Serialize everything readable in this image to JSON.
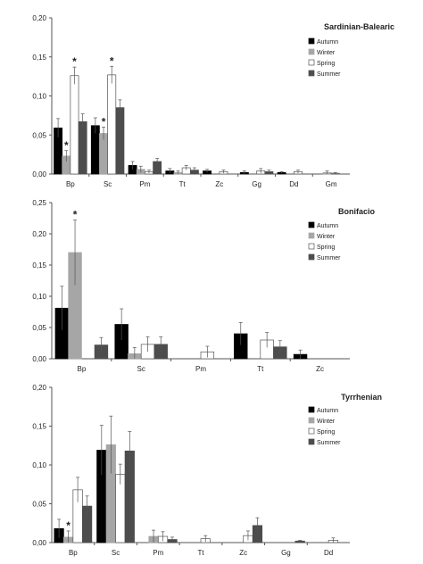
{
  "season_colors": {
    "Autumn": "#000000",
    "Winter": "#a6a6a6",
    "Spring": "#ffffff",
    "Summer": "#4d4d4d"
  },
  "chart_data": [
    {
      "type": "bar",
      "title": "Sardinian-Balearic",
      "categories": [
        "Bp",
        "Sc",
        "Pm",
        "Tt",
        "Zc",
        "Gg",
        "Dd",
        "Gm"
      ],
      "ylim": [
        0,
        0.2
      ],
      "yticks": [
        0,
        0.05,
        0.1,
        0.15,
        0.2
      ],
      "ytick_labels": [
        "0,00",
        "0,05",
        "0,10",
        "0,15",
        "0,20"
      ],
      "legend_position": "top-right",
      "grid": false,
      "series": [
        {
          "name": "Autumn",
          "values": [
            0.059,
            0.062,
            0.011,
            0.004,
            0.004,
            0.002,
            0.002,
            0.0
          ],
          "errors": [
            0.012,
            0.01,
            0.005,
            0.003,
            0.002,
            0.002,
            0.001,
            0.0
          ]
        },
        {
          "name": "Winter",
          "values": [
            0.023,
            0.052,
            0.006,
            0.002,
            0.0,
            0.0,
            0.0,
            0.002
          ],
          "errors": [
            0.007,
            0.008,
            0.004,
            0.002,
            0.0,
            0.0,
            0.0,
            0.002
          ]
        },
        {
          "name": "Spring",
          "values": [
            0.126,
            0.127,
            0.003,
            0.008,
            0.003,
            0.004,
            0.003,
            0.001
          ],
          "errors": [
            0.011,
            0.011,
            0.002,
            0.003,
            0.002,
            0.003,
            0.002,
            0.001
          ]
        },
        {
          "name": "Summer",
          "values": [
            0.067,
            0.085,
            0.016,
            0.005,
            0.0,
            0.003,
            0.0,
            0.0
          ],
          "errors": [
            0.01,
            0.01,
            0.004,
            0.003,
            0.0,
            0.002,
            0.0,
            0.0
          ]
        }
      ],
      "annotations": [
        {
          "text": "*",
          "category": "Bp",
          "series": "Winter"
        },
        {
          "text": "*",
          "category": "Bp",
          "series": "Spring"
        },
        {
          "text": "*",
          "category": "Sc",
          "series": "Winter"
        },
        {
          "text": "*",
          "category": "Sc",
          "series": "Spring"
        }
      ]
    },
    {
      "type": "bar",
      "title": "Bonifacio",
      "categories": [
        "Bp",
        "Sc",
        "Pm",
        "Tt",
        "Zc"
      ],
      "ylim": [
        0,
        0.25
      ],
      "yticks": [
        0,
        0.05,
        0.1,
        0.15,
        0.2,
        0.25
      ],
      "ytick_labels": [
        "0,00",
        "0,05",
        "0,10",
        "0,15",
        "0,20",
        "0,25"
      ],
      "legend_position": "top-right",
      "grid": false,
      "series": [
        {
          "name": "Autumn",
          "values": [
            0.081,
            0.055,
            0.0,
            0.04,
            0.007
          ],
          "errors": [
            0.035,
            0.025,
            0.0,
            0.018,
            0.007
          ]
        },
        {
          "name": "Winter",
          "values": [
            0.17,
            0.008,
            0.0,
            0.0,
            0.0
          ],
          "errors": [
            0.052,
            0.01,
            0.0,
            0.0,
            0.0
          ]
        },
        {
          "name": "Spring",
          "values": [
            0.0,
            0.023,
            0.011,
            0.03,
            0.0
          ],
          "errors": [
            0.0,
            0.012,
            0.009,
            0.012,
            0.0
          ]
        },
        {
          "name": "Summer",
          "values": [
            0.022,
            0.023,
            0.0,
            0.019,
            0.0
          ],
          "errors": [
            0.012,
            0.012,
            0.0,
            0.01,
            0.0
          ]
        }
      ],
      "annotations": [
        {
          "text": "*",
          "category": "Bp",
          "series": "Winter"
        }
      ]
    },
    {
      "type": "bar",
      "title": "Tyrrhenian",
      "categories": [
        "Bp",
        "Sc",
        "Pm",
        "Tt",
        "Zc",
        "Gg",
        "Dd"
      ],
      "ylim": [
        0,
        0.2
      ],
      "yticks": [
        0,
        0.05,
        0.1,
        0.15,
        0.2
      ],
      "ytick_labels": [
        "0,00",
        "0,05",
        "0,10",
        "0,15",
        "0,20"
      ],
      "legend_position": "top-right",
      "grid": false,
      "series": [
        {
          "name": "Autumn",
          "values": [
            0.018,
            0.119,
            0.0,
            0.0,
            0.0,
            0.0,
            0.0
          ],
          "errors": [
            0.012,
            0.032,
            0.0,
            0.0,
            0.0,
            0.0,
            0.0
          ]
        },
        {
          "name": "Winter",
          "values": [
            0.007,
            0.126,
            0.008,
            0.0,
            0.0,
            0.0,
            0.0
          ],
          "errors": [
            0.008,
            0.037,
            0.008,
            0.0,
            0.0,
            0.0,
            0.0
          ]
        },
        {
          "name": "Spring",
          "values": [
            0.068,
            0.088,
            0.008,
            0.005,
            0.009,
            0.0,
            0.003
          ],
          "errors": [
            0.016,
            0.013,
            0.006,
            0.004,
            0.006,
            0.0,
            0.003
          ]
        },
        {
          "name": "Summer",
          "values": [
            0.047,
            0.118,
            0.004,
            0.0,
            0.022,
            0.002,
            0.0
          ],
          "errors": [
            0.013,
            0.025,
            0.003,
            0.0,
            0.01,
            0.001,
            0.0
          ]
        }
      ],
      "annotations": [
        {
          "text": "*",
          "category": "Bp",
          "series": "Winter"
        }
      ]
    }
  ]
}
